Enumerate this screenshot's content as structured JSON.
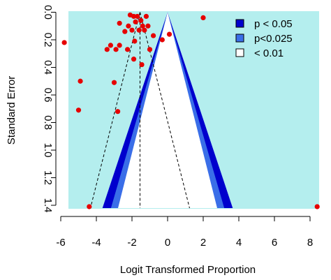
{
  "chart_data": {
    "type": "scatter",
    "subtype": "contour-enhanced funnel plot",
    "title": "",
    "xlabel": "Logit Transformed Proportion",
    "ylabel": "Standard Error",
    "xlim": [
      -6.2,
      9.0
    ],
    "ylim": [
      0.0,
      1.42
    ],
    "y_reversed": true,
    "x_ticks": [
      -6,
      -4,
      -2,
      0,
      2,
      4,
      6,
      8
    ],
    "y_ticks": [
      0.0,
      0.2,
      0.4,
      0.6,
      0.8,
      1.0,
      1.2,
      1.4
    ],
    "grid": false,
    "legend_position": "top-right",
    "legend": [
      {
        "label": "p < 0.05",
        "color": "#0000cd"
      },
      {
        "label": "p<0.025",
        "color": "#3a6ee8"
      },
      {
        "label": "< 0.01",
        "color": "#ffffff"
      }
    ],
    "colors": {
      "background_region": "#b4eeee",
      "band_p05": "#0000cd",
      "band_p025": "#3a6ee8",
      "inner_region": "#ffffff",
      "points": "#e60000"
    },
    "pooled_estimate": -1.55,
    "funnel_center": 0.0,
    "points": [
      {
        "x": -5.8,
        "y": 0.22
      },
      {
        "x": -4.9,
        "y": 0.5
      },
      {
        "x": -5.0,
        "y": 0.71
      },
      {
        "x": -4.4,
        "y": 1.41
      },
      {
        "x": -3.4,
        "y": 0.27
      },
      {
        "x": -3.2,
        "y": 0.24
      },
      {
        "x": -2.9,
        "y": 0.27
      },
      {
        "x": -2.7,
        "y": 0.24
      },
      {
        "x": -3.0,
        "y": 0.51
      },
      {
        "x": -2.8,
        "y": 0.72
      },
      {
        "x": -2.7,
        "y": 0.08
      },
      {
        "x": -2.4,
        "y": 0.14
      },
      {
        "x": -2.25,
        "y": 0.27
      },
      {
        "x": -2.2,
        "y": 0.1
      },
      {
        "x": -2.1,
        "y": 0.02
      },
      {
        "x": -2.0,
        "y": 0.13
      },
      {
        "x": -1.9,
        "y": 0.03
      },
      {
        "x": -1.8,
        "y": 0.07
      },
      {
        "x": -1.7,
        "y": 0.03
      },
      {
        "x": -1.6,
        "y": 0.13
      },
      {
        "x": -1.5,
        "y": 0.06
      },
      {
        "x": -1.4,
        "y": 0.1
      },
      {
        "x": -1.3,
        "y": 0.13
      },
      {
        "x": -1.2,
        "y": 0.03
      },
      {
        "x": -1.1,
        "y": 0.1
      },
      {
        "x": -1.0,
        "y": 0.27
      },
      {
        "x": -1.9,
        "y": 0.34
      },
      {
        "x": -1.45,
        "y": 0.38
      },
      {
        "x": -1.85,
        "y": 0.21
      },
      {
        "x": -0.8,
        "y": 0.17
      },
      {
        "x": -0.3,
        "y": 0.2
      },
      {
        "x": 0.1,
        "y": 0.16
      },
      {
        "x": 2.0,
        "y": 0.04
      },
      {
        "x": 8.4,
        "y": 1.41
      }
    ]
  }
}
